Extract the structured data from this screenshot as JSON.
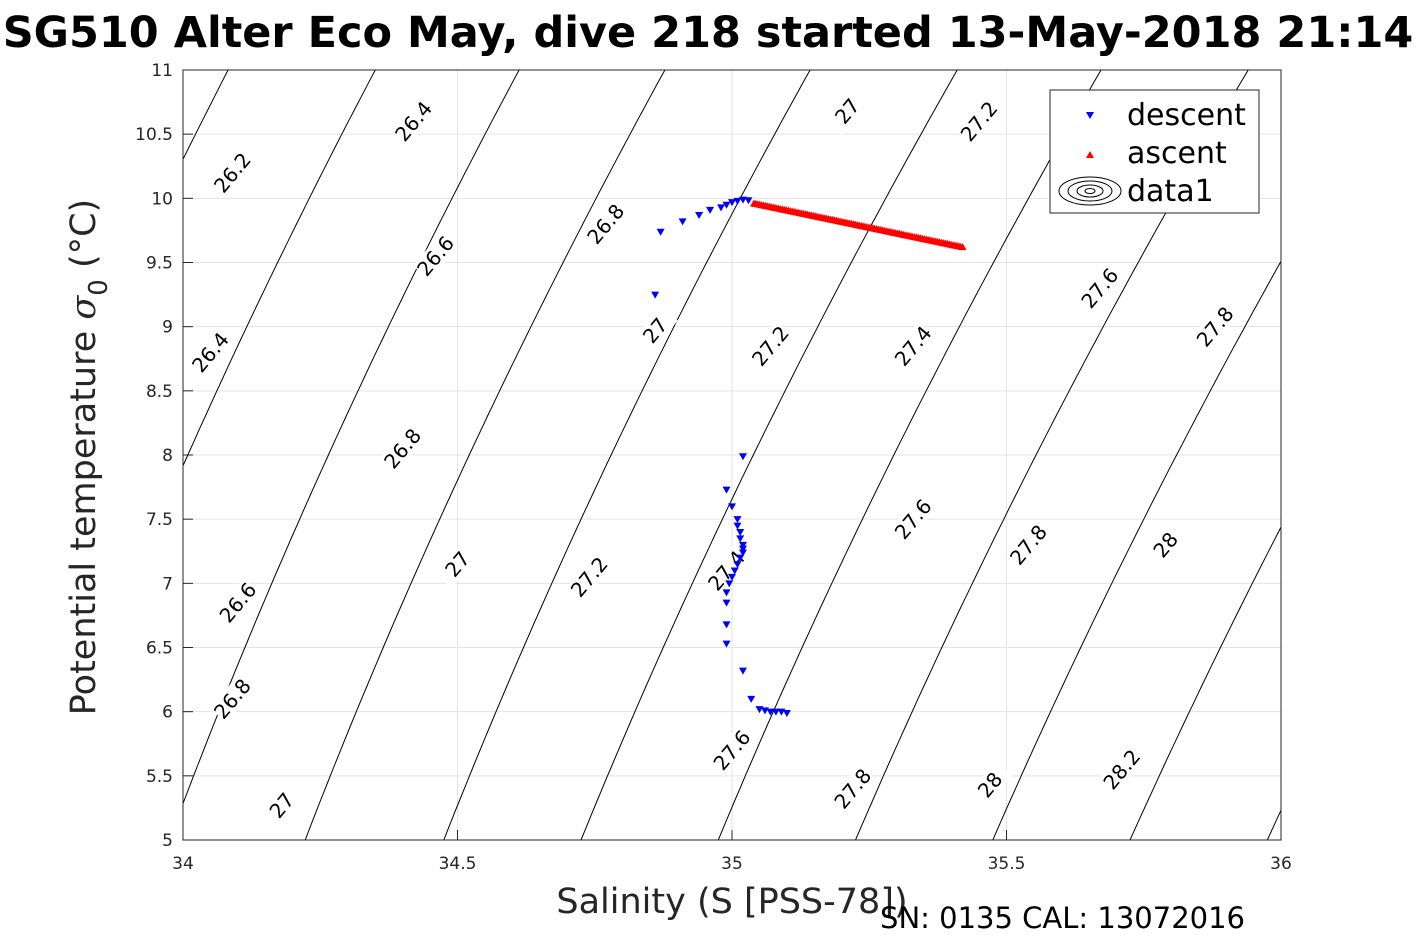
{
  "figure": {
    "title": "SG510 Alter Eco May, dive 218 started 13-May-2018 21:14",
    "note": "SN: 0135  CAL: 13072016"
  },
  "chart_data": {
    "type": "scatter",
    "title": "SG510 Alter Eco May, dive 218 started 13-May-2018 21:14",
    "xlabel": "Salinity (S [PSS-78])",
    "ylabel_main": "Potential temperature ",
    "ylabel_symbol": "σ",
    "ylabel_sub": "0",
    "ylabel_unit": " (°C)",
    "xlim": [
      34,
      36
    ],
    "ylim": [
      5,
      11
    ],
    "xticks": [
      34,
      34.5,
      35,
      35.5,
      36
    ],
    "yticks": [
      5,
      5.5,
      6,
      6.5,
      7,
      7.5,
      8,
      8.5,
      9,
      9.5,
      10,
      10.5,
      11
    ],
    "xtick_labels": [
      "34",
      "34.5",
      "35",
      "35.5",
      "36"
    ],
    "ytick_labels": [
      "5",
      "5.5",
      "6",
      "6.5",
      "7",
      "7.5",
      "8",
      "8.5",
      "9",
      "9.5",
      "10",
      "10.5",
      "11"
    ],
    "grid": true,
    "legend_position": "top-right",
    "contour_levels": [
      {
        "level": 26.2,
        "x_at_5": 33.225,
        "slope": 0.08
      },
      {
        "level": 26.4,
        "x_at_5": 33.475,
        "slope": 0.082
      },
      {
        "level": 26.6,
        "x_at_5": 33.725,
        "slope": 0.085
      },
      {
        "level": 26.8,
        "x_at_5": 33.975,
        "slope": 0.087
      },
      {
        "level": 27.0,
        "x_at_5": 34.2225,
        "slope": 0.09
      },
      {
        "level": 27.2,
        "x_at_5": 34.475,
        "slope": 0.092
      },
      {
        "level": 27.4,
        "x_at_5": 34.725,
        "slope": 0.095
      },
      {
        "level": 27.6,
        "x_at_5": 34.975,
        "slope": 0.097
      },
      {
        "level": 27.8,
        "x_at_5": 35.225,
        "slope": 0.1
      },
      {
        "level": 28.0,
        "x_at_5": 35.475,
        "slope": 0.102
      },
      {
        "level": 28.2,
        "x_at_5": 35.725,
        "slope": 0.105
      },
      {
        "level": 28.4,
        "x_at_5": 35.975,
        "slope": 0.107
      }
    ],
    "contour_labels": [
      {
        "text": "26.2",
        "x": 34.09,
        "y": 10.2
      },
      {
        "text": "26.4",
        "x": 34.42,
        "y": 10.6
      },
      {
        "text": "26.4",
        "x": 34.05,
        "y": 8.8
      },
      {
        "text": "26.6",
        "x": 34.46,
        "y": 9.55
      },
      {
        "text": "26.6",
        "x": 34.1,
        "y": 6.85
      },
      {
        "text": "26.8",
        "x": 34.77,
        "y": 9.8
      },
      {
        "text": "26.8",
        "x": 34.4,
        "y": 8.05
      },
      {
        "text": "26.8",
        "x": 34.09,
        "y": 6.1
      },
      {
        "text": "27",
        "x": 35.21,
        "y": 10.68
      },
      {
        "text": "27",
        "x": 34.86,
        "y": 8.97
      },
      {
        "text": "27",
        "x": 34.5,
        "y": 7.15
      },
      {
        "text": "27",
        "x": 34.18,
        "y": 5.27
      },
      {
        "text": "27.2",
        "x": 35.45,
        "y": 10.6
      },
      {
        "text": "27.2",
        "x": 35.07,
        "y": 8.85
      },
      {
        "text": "27.2",
        "x": 34.74,
        "y": 7.05
      },
      {
        "text": "27.4",
        "x": 35.33,
        "y": 8.85
      },
      {
        "text": "27.4",
        "x": 34.99,
        "y": 7.1
      },
      {
        "text": "27.6",
        "x": 35.67,
        "y": 9.3
      },
      {
        "text": "27.6",
        "x": 35.33,
        "y": 7.5
      },
      {
        "text": "27.6",
        "x": 35.0,
        "y": 5.7
      },
      {
        "text": "27.8",
        "x": 35.88,
        "y": 9.0
      },
      {
        "text": "27.8",
        "x": 35.54,
        "y": 7.3
      },
      {
        "text": "27.8",
        "x": 35.22,
        "y": 5.4
      },
      {
        "text": "28",
        "x": 35.79,
        "y": 7.3
      },
      {
        "text": "28",
        "x": 35.47,
        "y": 5.43
      },
      {
        "text": "28.2",
        "x": 35.71,
        "y": 5.55
      }
    ],
    "series": [
      {
        "name": "descent",
        "color": "#0000ff",
        "marker": "triangle-down",
        "points": [
          [
            35.02,
            7.99
          ],
          [
            34.99,
            7.73
          ],
          [
            35.0,
            7.6
          ],
          [
            35.01,
            7.5
          ],
          [
            35.01,
            7.45
          ],
          [
            35.015,
            7.4
          ],
          [
            35.015,
            7.35
          ],
          [
            35.02,
            7.3
          ],
          [
            35.02,
            7.27
          ],
          [
            35.02,
            7.24
          ],
          [
            35.015,
            7.2
          ],
          [
            35.01,
            7.15
          ],
          [
            35.005,
            7.1
          ],
          [
            35.0,
            7.05
          ],
          [
            34.995,
            7.0
          ],
          [
            34.99,
            6.93
          ],
          [
            34.99,
            6.85
          ],
          [
            34.99,
            6.68
          ],
          [
            34.99,
            6.53
          ],
          [
            35.02,
            6.32
          ],
          [
            35.035,
            6.1
          ],
          [
            35.05,
            6.02
          ],
          [
            35.06,
            6.01
          ],
          [
            35.07,
            6.0
          ],
          [
            35.08,
            6.0
          ],
          [
            35.09,
            6.0
          ],
          [
            35.1,
            5.99
          ],
          [
            34.86,
            9.25
          ],
          [
            34.87,
            9.74
          ],
          [
            34.91,
            9.82
          ],
          [
            34.94,
            9.87
          ],
          [
            34.96,
            9.91
          ],
          [
            34.98,
            9.93
          ],
          [
            34.99,
            9.95
          ],
          [
            35.0,
            9.97
          ],
          [
            35.01,
            9.98
          ],
          [
            35.02,
            9.99
          ],
          [
            35.03,
            9.985
          ]
        ]
      },
      {
        "name": "ascent",
        "color": "#ff0000",
        "marker": "triangle-up",
        "x_start": 35.04,
        "x_end": 35.42,
        "y_start": 9.96,
        "y_end": 9.62,
        "count": 110
      },
      {
        "name": "data1",
        "marker": "contour-icon"
      }
    ]
  }
}
